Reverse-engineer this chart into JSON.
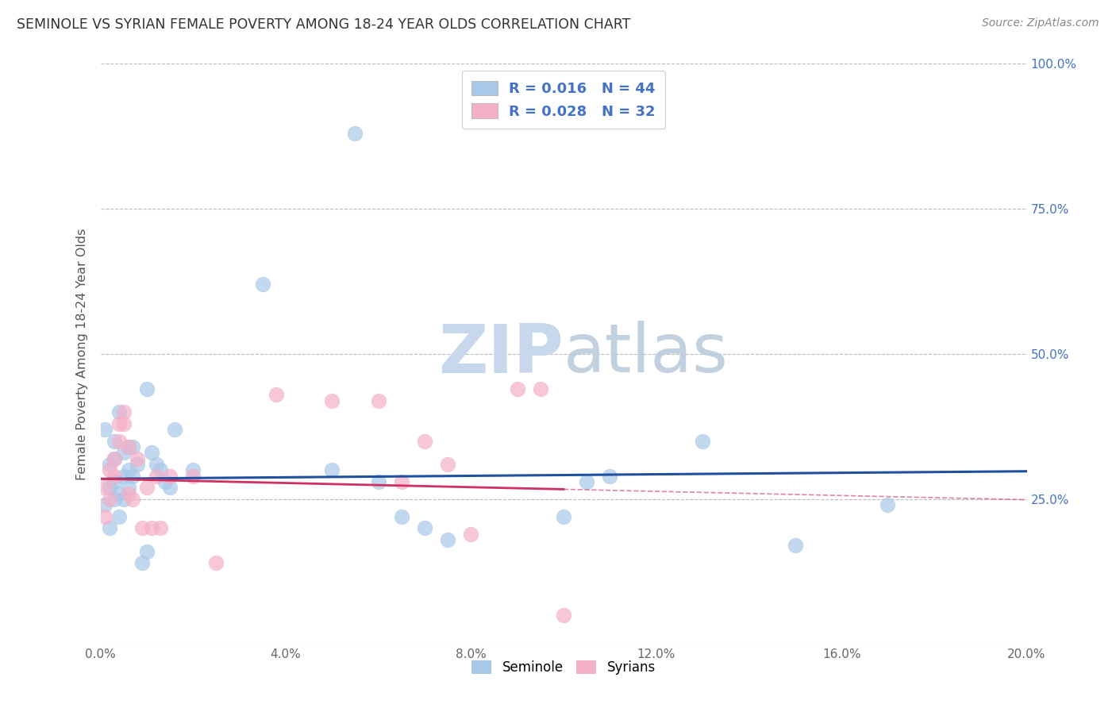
{
  "title": "SEMINOLE VS SYRIAN FEMALE POVERTY AMONG 18-24 YEAR OLDS CORRELATION CHART",
  "source": "Source: ZipAtlas.com",
  "ylabel": "Female Poverty Among 18-24 Year Olds",
  "xlim": [
    0.0,
    0.2
  ],
  "ylim": [
    0.0,
    1.0
  ],
  "xticks": [
    0.0,
    0.04,
    0.08,
    0.12,
    0.16,
    0.2
  ],
  "yticks": [
    0.0,
    0.25,
    0.5,
    0.75,
    1.0
  ],
  "xtick_labels": [
    "0.0%",
    "4.0%",
    "8.0%",
    "12.0%",
    "16.0%",
    "20.0%"
  ],
  "ytick_labels_right": [
    "",
    "25.0%",
    "50.0%",
    "75.0%",
    "100.0%"
  ],
  "seminole_color": "#A8C8E8",
  "syrians_color": "#F4B0C8",
  "seminole_line_color": "#2050A0",
  "syrians_line_color": "#D03060",
  "grid_color": "#BBBBBB",
  "background_color": "#FFFFFF",
  "watermark_color": "#C8D8EC",
  "legend_R_N_color": "#4472C4",
  "seminole_R": 0.016,
  "seminole_N": 44,
  "syrians_R": 0.028,
  "syrians_N": 32,
  "seminole_x": [
    0.001,
    0.002,
    0.002,
    0.003,
    0.003,
    0.003,
    0.004,
    0.004,
    0.005,
    0.005,
    0.005,
    0.006,
    0.006,
    0.006,
    0.007,
    0.007,
    0.008,
    0.009,
    0.01,
    0.01,
    0.011,
    0.012,
    0.013,
    0.014,
    0.015,
    0.016,
    0.02,
    0.035,
    0.05,
    0.055,
    0.06,
    0.065,
    0.07,
    0.075,
    0.1,
    0.105,
    0.11,
    0.13,
    0.15,
    0.17,
    0.001,
    0.002,
    0.003,
    0.004
  ],
  "seminole_y": [
    0.37,
    0.31,
    0.27,
    0.35,
    0.32,
    0.28,
    0.4,
    0.26,
    0.33,
    0.29,
    0.25,
    0.34,
    0.3,
    0.27,
    0.34,
    0.29,
    0.31,
    0.14,
    0.16,
    0.44,
    0.33,
    0.31,
    0.3,
    0.28,
    0.27,
    0.37,
    0.3,
    0.62,
    0.3,
    0.88,
    0.28,
    0.22,
    0.2,
    0.18,
    0.22,
    0.28,
    0.29,
    0.35,
    0.17,
    0.24,
    0.24,
    0.2,
    0.25,
    0.22
  ],
  "syrians_x": [
    0.001,
    0.001,
    0.002,
    0.002,
    0.003,
    0.003,
    0.004,
    0.004,
    0.005,
    0.005,
    0.006,
    0.006,
    0.007,
    0.008,
    0.009,
    0.01,
    0.011,
    0.012,
    0.013,
    0.015,
    0.02,
    0.025,
    0.038,
    0.05,
    0.06,
    0.065,
    0.07,
    0.075,
    0.08,
    0.09,
    0.095,
    0.1
  ],
  "syrians_y": [
    0.27,
    0.22,
    0.3,
    0.25,
    0.32,
    0.29,
    0.35,
    0.38,
    0.4,
    0.38,
    0.26,
    0.34,
    0.25,
    0.32,
    0.2,
    0.27,
    0.2,
    0.29,
    0.2,
    0.29,
    0.29,
    0.14,
    0.43,
    0.42,
    0.42,
    0.28,
    0.35,
    0.31,
    0.19,
    0.44,
    0.44,
    0.05
  ]
}
